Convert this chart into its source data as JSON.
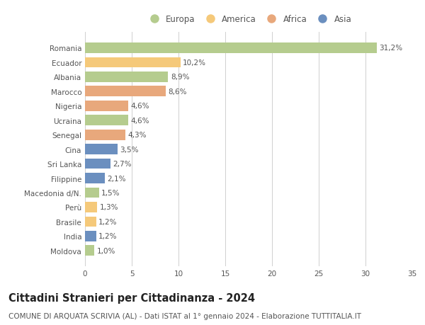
{
  "countries": [
    "Romania",
    "Ecuador",
    "Albania",
    "Marocco",
    "Nigeria",
    "Ucraina",
    "Senegal",
    "Cina",
    "Sri Lanka",
    "Filippine",
    "Macedonia d/N.",
    "Perù",
    "Brasile",
    "India",
    "Moldova"
  ],
  "values": [
    31.2,
    10.2,
    8.9,
    8.6,
    4.6,
    4.6,
    4.3,
    3.5,
    2.7,
    2.1,
    1.5,
    1.3,
    1.2,
    1.2,
    1.0
  ],
  "labels": [
    "31,2%",
    "10,2%",
    "8,9%",
    "8,6%",
    "4,6%",
    "4,6%",
    "4,3%",
    "3,5%",
    "2,7%",
    "2,1%",
    "1,5%",
    "1,3%",
    "1,2%",
    "1,2%",
    "1,0%"
  ],
  "continents": [
    "Europa",
    "America",
    "Europa",
    "Africa",
    "Africa",
    "Europa",
    "Africa",
    "Asia",
    "Asia",
    "Asia",
    "Europa",
    "America",
    "America",
    "Asia",
    "Europa"
  ],
  "continent_colors": {
    "Europa": "#b5cc8e",
    "America": "#f5c97a",
    "Africa": "#e8a87c",
    "Asia": "#6b8fbf"
  },
  "legend_order": [
    "Europa",
    "America",
    "Africa",
    "Asia"
  ],
  "xlim": [
    0,
    35
  ],
  "xticks": [
    0,
    5,
    10,
    15,
    20,
    25,
    30,
    35
  ],
  "title": "Cittadini Stranieri per Cittadinanza - 2024",
  "subtitle": "COMUNE DI ARQUATA SCRIVIA (AL) - Dati ISTAT al 1° gennaio 2024 - Elaborazione TUTTITALIA.IT",
  "background_color": "#ffffff",
  "grid_color": "#d0d0d0",
  "bar_height": 0.72,
  "title_fontsize": 10.5,
  "subtitle_fontsize": 7.5,
  "label_fontsize": 7.5,
  "tick_fontsize": 7.5,
  "legend_fontsize": 8.5
}
